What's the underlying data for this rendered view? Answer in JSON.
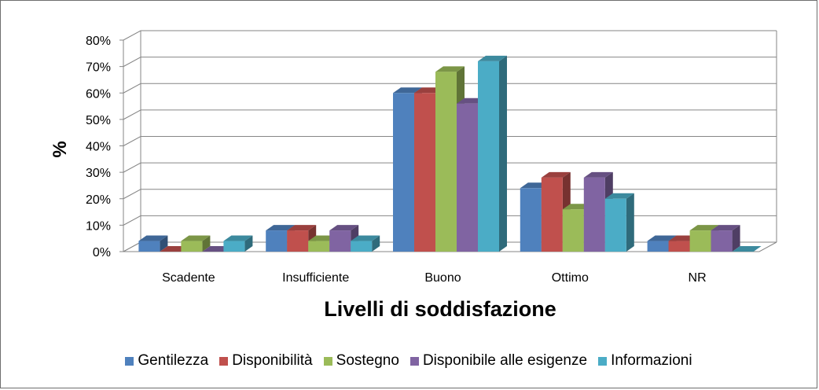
{
  "chart_data": {
    "type": "bar",
    "style": "3d-clustered-column",
    "title": "",
    "xlabel": "Livelli di soddisfazione",
    "ylabel": "%",
    "ylim": [
      0,
      80
    ],
    "ytick_step": 10,
    "ytick_suffix": "%",
    "grid": true,
    "legend_position": "bottom",
    "categories": [
      "Scadente",
      "Insufficiente",
      "Buono",
      "Ottimo",
      "NR"
    ],
    "series": [
      {
        "name": "Gentilezza",
        "values": [
          4,
          8,
          60,
          24,
          4
        ],
        "color": "#4f81bd"
      },
      {
        "name": "Disponibilità",
        "values": [
          0,
          8,
          60,
          28,
          4
        ],
        "color": "#c0504d"
      },
      {
        "name": "Sostegno",
        "values": [
          4,
          4,
          68,
          16,
          8
        ],
        "color": "#9bbb59"
      },
      {
        "name": "Disponibile alle esigenze",
        "values": [
          0,
          8,
          56,
          28,
          8
        ],
        "color": "#8064a2"
      },
      {
        "name": "Informazioni",
        "values": [
          4,
          4,
          72,
          20,
          0
        ],
        "color": "#4bacc6"
      }
    ]
  }
}
